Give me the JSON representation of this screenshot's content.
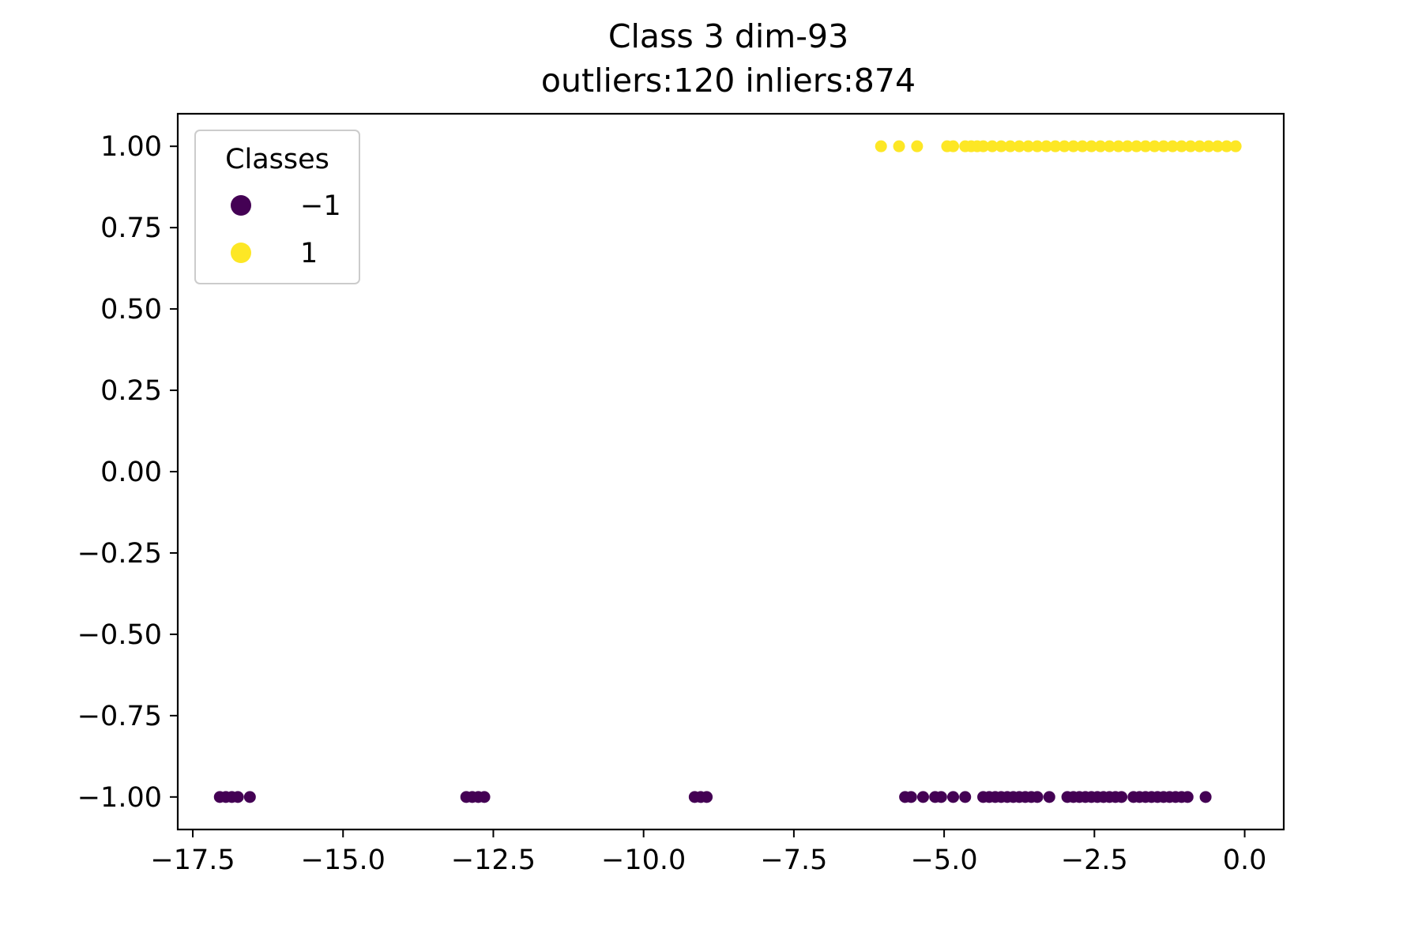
{
  "chart_data": {
    "type": "scatter",
    "title": "Class 3 dim-93",
    "subtitle": "outliers:120  inliers:874",
    "xlabel": "",
    "ylabel": "",
    "xlim": [
      -17.75,
      0.65
    ],
    "ylim": [
      -1.1,
      1.1
    ],
    "x_ticks": [
      -17.5,
      -15.0,
      -12.5,
      -10.0,
      -7.5,
      -5.0,
      -2.5,
      0.0
    ],
    "x_tick_labels": [
      "−17.5",
      "−15.0",
      "−12.5",
      "−10.0",
      "−7.5",
      "−5.0",
      "−2.5",
      "0.0"
    ],
    "y_ticks": [
      1.0,
      0.75,
      0.5,
      0.25,
      0.0,
      -0.25,
      -0.5,
      -0.75,
      -1.0
    ],
    "y_tick_labels": [
      "1.00",
      "0.75",
      "0.50",
      "0.25",
      "0.00",
      "−0.25",
      "−0.50",
      "−0.75",
      "−1.00"
    ],
    "grid": false,
    "legend": {
      "title": "Classes",
      "placement": "top-left",
      "entries": [
        {
          "label": "−1",
          "color": "#440154"
        },
        {
          "label": "1",
          "color": "#fde725"
        }
      ]
    },
    "series": [
      {
        "name": "−1",
        "color": "#440154",
        "y": -1,
        "x": [
          -17.05,
          -16.95,
          -16.85,
          -16.75,
          -16.55,
          -12.95,
          -12.85,
          -12.75,
          -12.65,
          -9.15,
          -9.05,
          -8.95,
          -5.65,
          -5.55,
          -5.35,
          -5.15,
          -5.05,
          -4.85,
          -4.65,
          -4.35,
          -4.25,
          -4.15,
          -4.05,
          -3.95,
          -3.85,
          -3.75,
          -3.65,
          -3.55,
          -3.45,
          -3.25,
          -2.95,
          -2.85,
          -2.75,
          -2.65,
          -2.55,
          -2.45,
          -2.35,
          -2.25,
          -2.15,
          -2.05,
          -1.85,
          -1.75,
          -1.65,
          -1.55,
          -1.45,
          -1.35,
          -1.25,
          -1.15,
          -1.05,
          -0.95,
          -0.65
        ]
      },
      {
        "name": "1",
        "color": "#fde725",
        "y": 1,
        "x": [
          -6.05,
          -5.75,
          -5.45,
          -4.95,
          -4.85,
          -4.65,
          -4.55,
          -4.45,
          -4.35,
          -4.2,
          -4.05,
          -3.9,
          -3.75,
          -3.6,
          -3.45,
          -3.3,
          -3.15,
          -3.0,
          -2.85,
          -2.7,
          -2.55,
          -2.4,
          -2.25,
          -2.1,
          -1.95,
          -1.8,
          -1.65,
          -1.5,
          -1.35,
          -1.2,
          -1.05,
          -0.9,
          -0.75,
          -0.6,
          -0.45,
          -0.3,
          -0.15
        ]
      }
    ]
  }
}
